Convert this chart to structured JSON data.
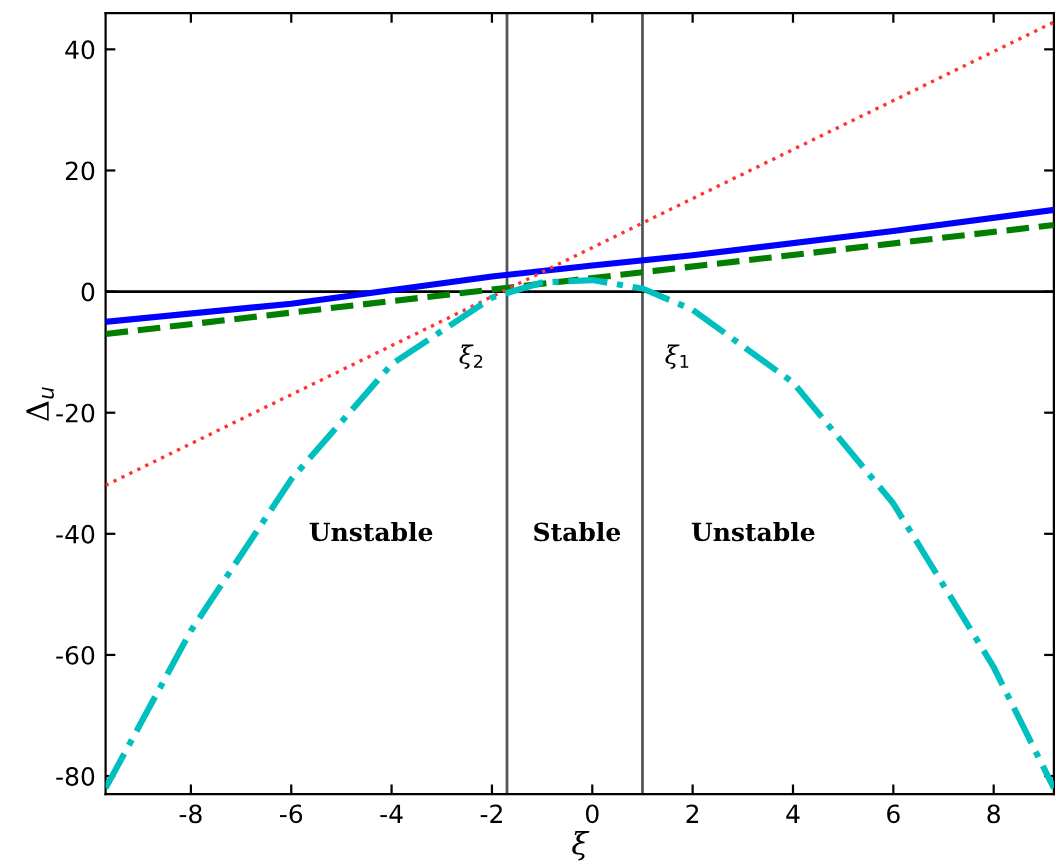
{
  "chart_data": {
    "type": "line",
    "xlabel": "ξ",
    "ylabel": "Δ$_{u}$",
    "xlim": [
      -9.7,
      9.2
    ],
    "ylim": [
      -83,
      46
    ],
    "xticks": [
      -8,
      -6,
      -4,
      -2,
      0,
      2,
      4,
      6,
      8
    ],
    "yticks": [
      -80,
      -60,
      -40,
      -20,
      0,
      20,
      40
    ],
    "grid": false,
    "legend": false,
    "series": [
      {
        "color": "#0000ff",
        "line_style": "solid",
        "x": [
          -9.7,
          -6,
          -2,
          0,
          2,
          6,
          9.2
        ],
        "values": [
          -5,
          -2,
          2.5,
          4.3,
          6,
          10,
          13.5
        ]
      },
      {
        "color": "#007f00",
        "line_style": "dashed",
        "x": [
          -9.7,
          9.2
        ],
        "values": [
          -7,
          11
        ]
      },
      {
        "color": "#ff3333",
        "line_style": "dotted",
        "x": [
          -9.7,
          9.2
        ],
        "values": [
          -32,
          44.5
        ]
      },
      {
        "color": "#00bfbf",
        "line_style": "dashdot",
        "x": [
          -9.7,
          -8,
          -6,
          -4,
          -2,
          -1,
          0,
          1,
          2,
          4,
          6,
          8,
          9.2
        ],
        "values": [
          -82,
          -56,
          -31,
          -12,
          -1,
          1.5,
          1.9,
          0.5,
          -3,
          -15,
          -35,
          -62,
          -82
        ]
      }
    ],
    "ref_lines": [
      {
        "axis": "x",
        "value": -1.7,
        "color": "#555555",
        "label": "ξ$_{2}$"
      },
      {
        "axis": "x",
        "value": 1.0,
        "color": "#555555",
        "label": "ξ$_{1}$"
      },
      {
        "axis": "y",
        "value": 0,
        "color": "#000000"
      }
    ],
    "annotations": [
      "Unstable",
      "Stable",
      "Unstable"
    ]
  }
}
